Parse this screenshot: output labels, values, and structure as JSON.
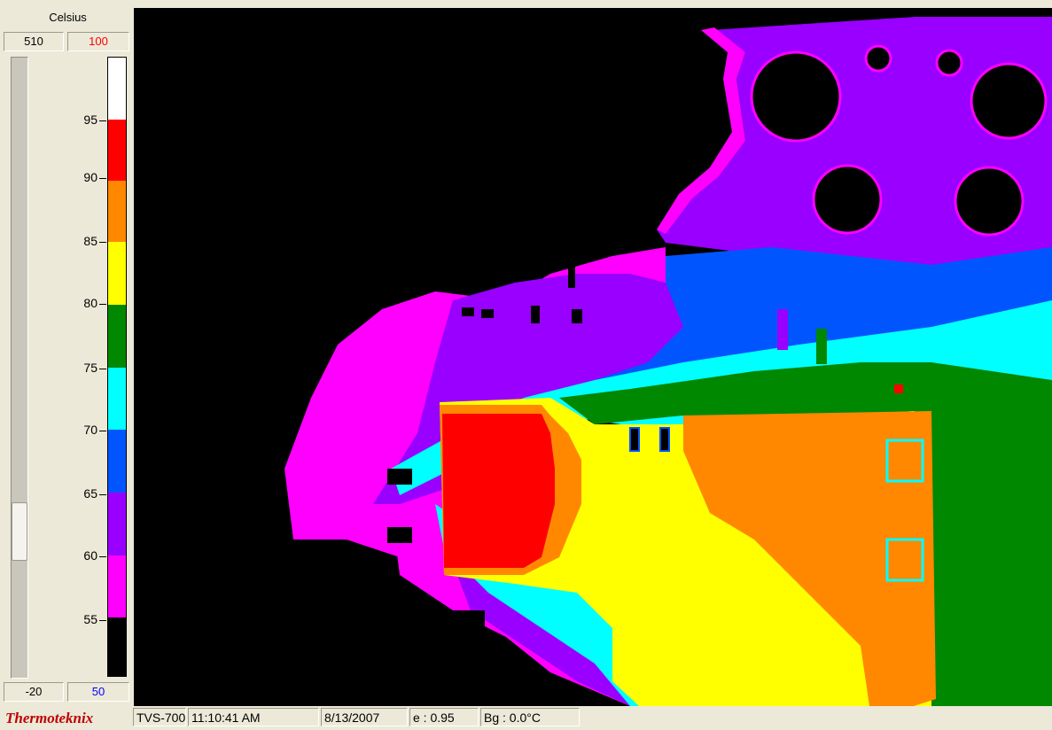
{
  "scale": {
    "unit": "Celsius",
    "range_max": "510",
    "limit_max": "100",
    "range_min": "-20",
    "limit_min": "50",
    "ticks": [
      "95",
      "90",
      "85",
      "80",
      "75",
      "70",
      "65",
      "60",
      "55"
    ],
    "palette": [
      "#000000",
      "#ff00ff",
      "#9900ff",
      "#0055ff",
      "#00ffff",
      "#008800",
      "#ffff00",
      "#ff8800",
      "#ff0000",
      "#ffffff"
    ],
    "slider_level": 0.79
  },
  "thermal_view": {
    "colors": {
      "black": "#000000",
      "magenta": "#ff00ff",
      "purple": "#9900ff",
      "blue": "#0055ff",
      "cyan": "#00ffff",
      "green": "#008800",
      "yellow": "#ffff00",
      "orange": "#ff8800",
      "red": "#ff0000"
    }
  },
  "status_bar": {
    "brand": "Thermoteknix",
    "camera": "TVS-700",
    "time": "11:10:41 AM",
    "date": "8/13/2007",
    "emissivity": "e : 0.95",
    "background": "Bg : 0.0°C"
  }
}
